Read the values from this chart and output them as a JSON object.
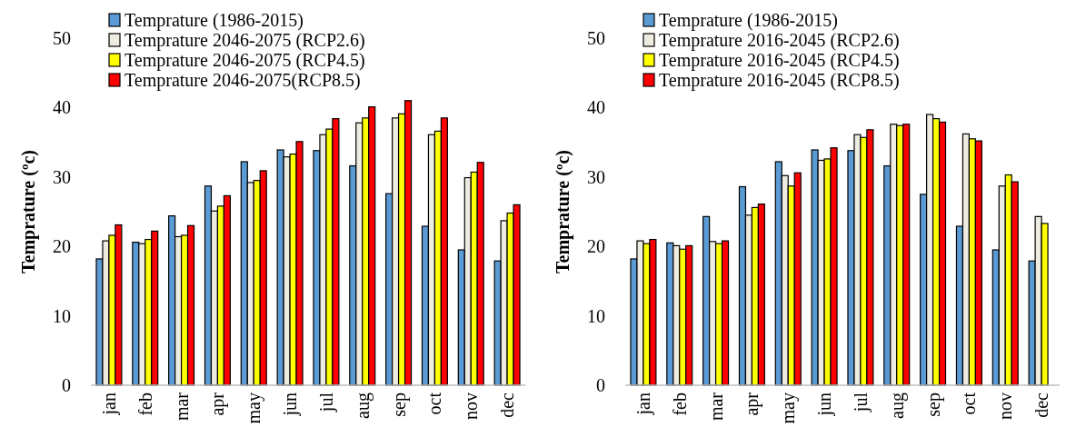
{
  "chart_data": [
    {
      "type": "bar",
      "ylabel": "Temprature (ºc)",
      "categories": [
        "jan",
        "feb",
        "mar",
        "apr",
        "may",
        "jun",
        "jul",
        "aug",
        "sep",
        "oct",
        "nov",
        "dec"
      ],
      "ylim": [
        0,
        50
      ],
      "yticks": [
        0,
        10,
        20,
        30,
        40,
        50
      ],
      "grid": false,
      "legend": "top left",
      "series": [
        {
          "name": "Temprature (1986-2015)",
          "color": "#5b9bd5",
          "values": [
            18.2,
            20.6,
            24.4,
            28.7,
            32.2,
            33.9,
            33.8,
            31.6,
            27.6,
            22.9,
            19.5,
            17.9
          ]
        },
        {
          "name": "Temprature 2046-2075 (RCP2.6)",
          "color": "#eeece1",
          "values": [
            20.8,
            20.4,
            21.4,
            25.1,
            29.2,
            32.9,
            36.1,
            37.8,
            38.5,
            36.1,
            29.9,
            23.7
          ]
        },
        {
          "name": "Temprature 2046-2075 (RCP4.5)",
          "color": "#ffff00",
          "values": [
            21.6,
            21.0,
            21.6,
            25.8,
            29.5,
            33.3,
            36.9,
            38.5,
            39.1,
            36.6,
            30.7,
            24.8
          ]
        },
        {
          "name": "Temprature 2046-2075(RCP8.5)",
          "color": "#ff0000",
          "values": [
            23.1,
            22.2,
            23.0,
            27.3,
            30.9,
            35.1,
            38.4,
            40.1,
            41.0,
            38.5,
            32.1,
            26.0
          ]
        }
      ]
    },
    {
      "type": "bar",
      "ylabel": "Temprature (ºc)",
      "categories": [
        "jan",
        "feb",
        "mar",
        "apr",
        "may",
        "jun",
        "jul",
        "aug",
        "sep",
        "oct",
        "nov",
        "dec"
      ],
      "ylim": [
        0,
        50
      ],
      "yticks": [
        0,
        10,
        20,
        30,
        40,
        50
      ],
      "grid": false,
      "legend": "top left",
      "series": [
        {
          "name": "Temprature (1986-2015)",
          "color": "#5b9bd5",
          "values": [
            18.2,
            20.5,
            24.3,
            28.6,
            32.2,
            33.9,
            33.8,
            31.6,
            27.5,
            22.9,
            19.5,
            17.9
          ]
        },
        {
          "name": "Temprature 2016-2045 (RCP2.6)",
          "color": "#eeece1",
          "values": [
            20.8,
            20.1,
            20.7,
            24.5,
            30.2,
            32.4,
            36.1,
            37.6,
            39.0,
            36.2,
            28.7,
            24.3
          ]
        },
        {
          "name": "Temprature 2016-2045 (RCP4.5)",
          "color": "#ffff00",
          "values": [
            20.4,
            19.6,
            20.4,
            25.6,
            28.7,
            32.6,
            35.7,
            37.4,
            38.4,
            35.5,
            30.3,
            23.3
          ]
        },
        {
          "name": "Temprature 2016-2045 (RCP8.5)",
          "color": "#ff0000",
          "values": [
            21.0,
            20.1,
            20.8,
            26.1,
            30.6,
            34.2,
            36.8,
            37.6,
            37.9,
            35.2,
            29.3,
            null
          ]
        }
      ]
    }
  ]
}
